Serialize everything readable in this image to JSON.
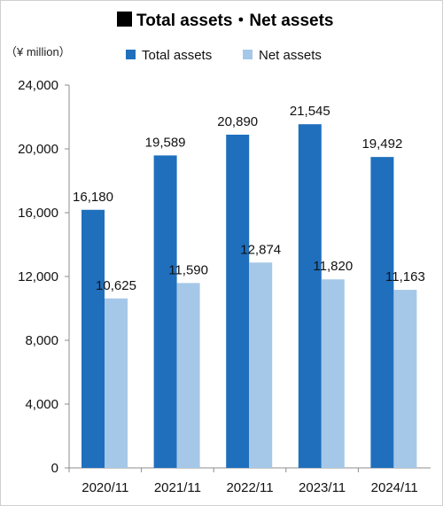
{
  "chart_data": {
    "type": "bar",
    "title": "Total assets・Net assets",
    "unit_label": "（¥ million）",
    "categories": [
      "2020/11",
      "2021/11",
      "2022/11",
      "2023/11",
      "2024/11"
    ],
    "series": [
      {
        "name": "Total assets",
        "color": "#1f6fbd",
        "values": [
          16180,
          19589,
          20890,
          21545,
          19492
        ],
        "labels": [
          "16,180",
          "19,589",
          "20,890",
          "21,545",
          "19,492"
        ]
      },
      {
        "name": "Net assets",
        "color": "#a6c8e8",
        "values": [
          10625,
          11590,
          12874,
          11820,
          11163
        ],
        "labels": [
          "10,625",
          "11,590",
          "12,874",
          "11,820",
          "11,163"
        ]
      }
    ],
    "ylim": [
      0,
      24000
    ],
    "yticks": [
      0,
      4000,
      8000,
      12000,
      16000,
      20000,
      24000
    ],
    "ytick_labels": [
      "0",
      "4,000",
      "8,000",
      "12,000",
      "16,000",
      "20,000",
      "24,000"
    ],
    "grid": false,
    "legend_position": "top"
  }
}
